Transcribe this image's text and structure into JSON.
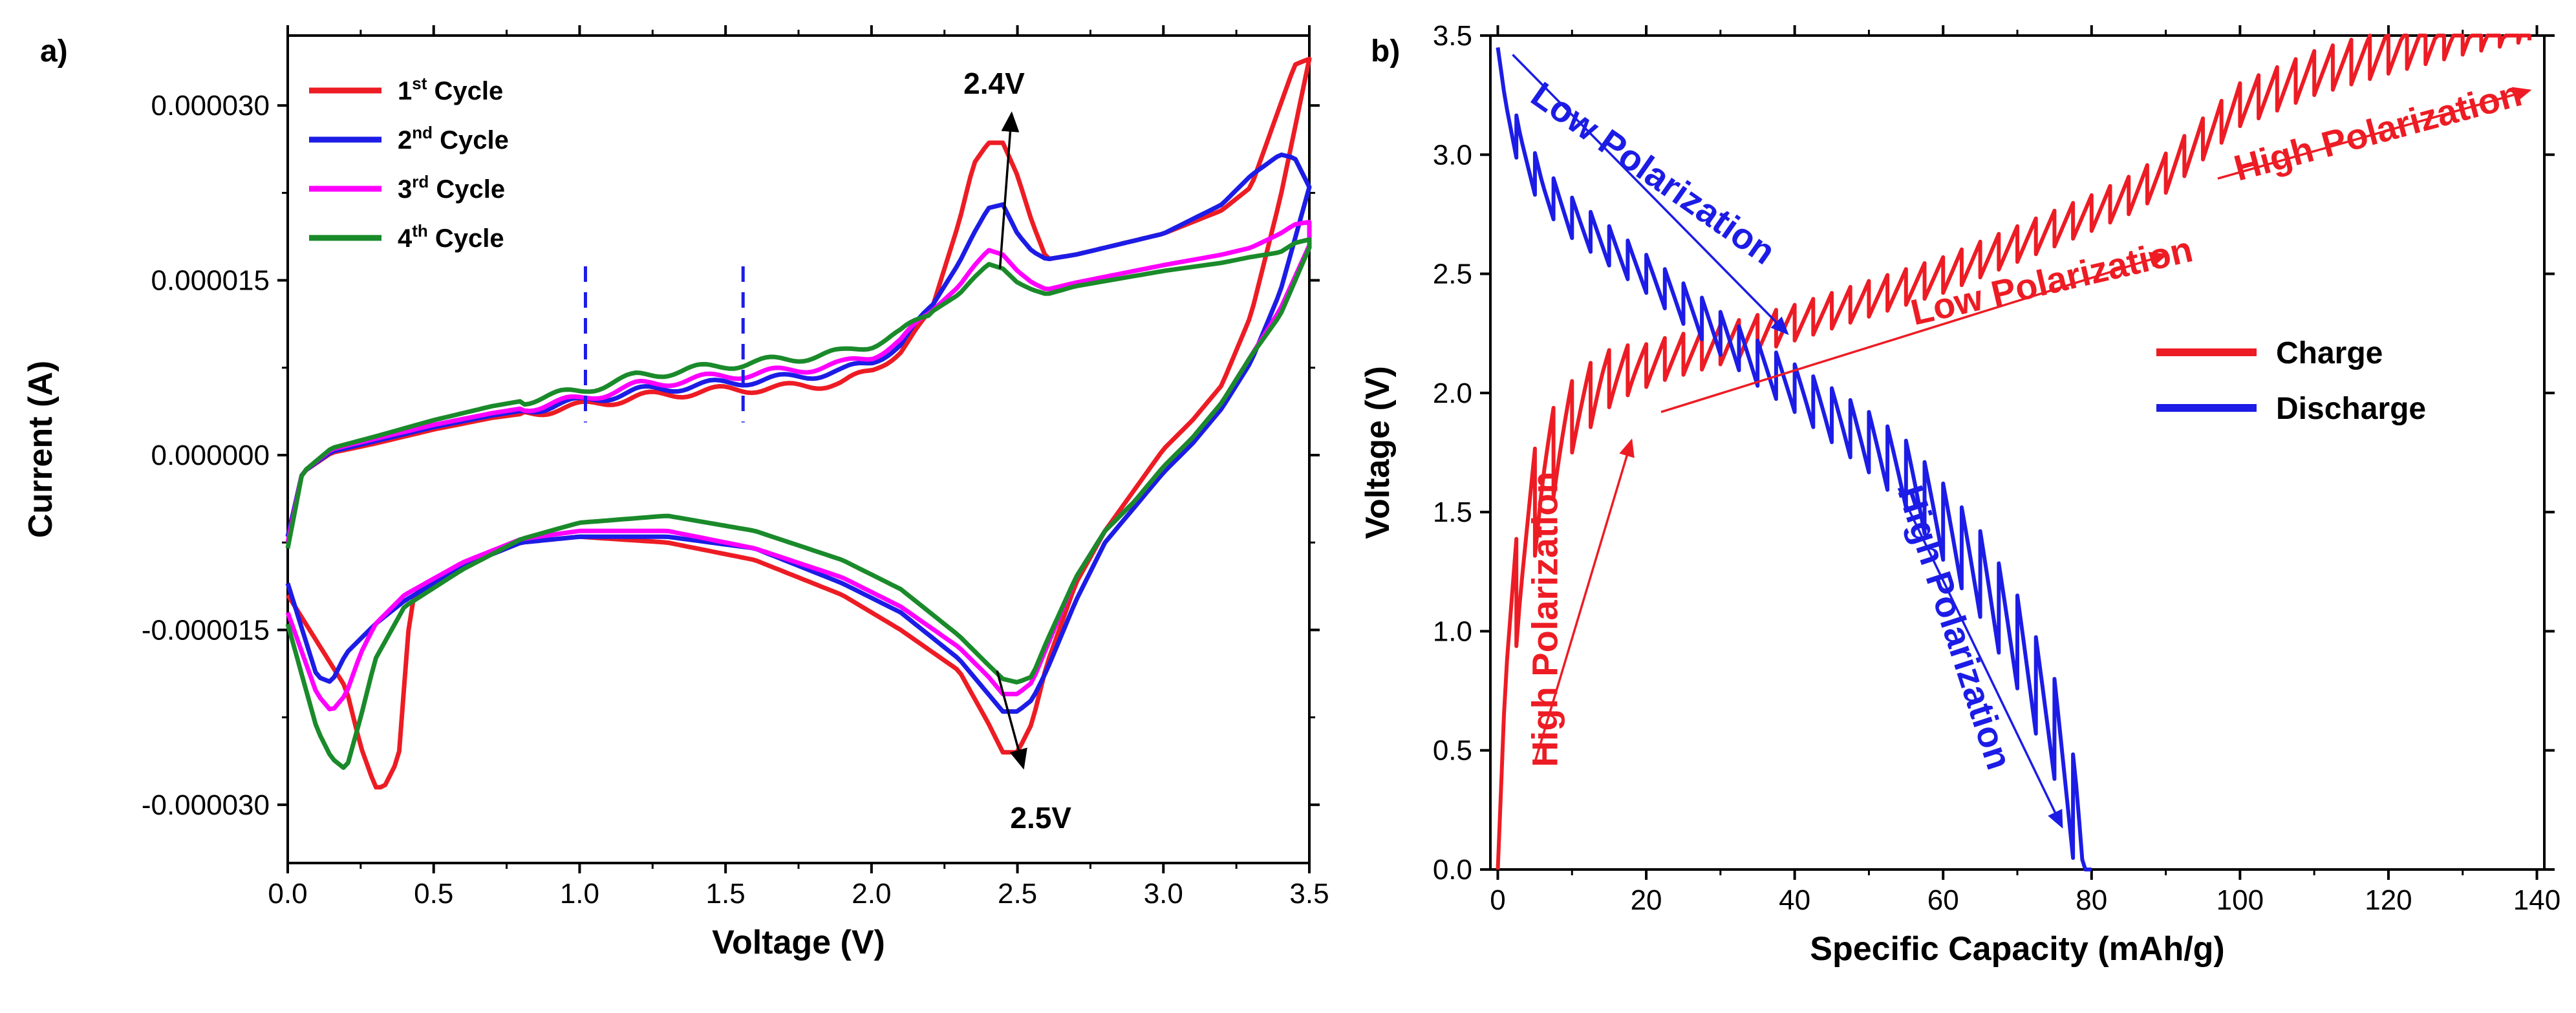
{
  "figure": {
    "panels": [
      "a)",
      "b)"
    ]
  },
  "chart_data": [
    {
      "type": "line",
      "panel": "a)",
      "title": "",
      "xlabel": "Voltage (V)",
      "ylabel": "Current (A)",
      "xlim": [
        0,
        3.5
      ],
      "ylim": [
        -3.5e-05,
        3.6e-05
      ],
      "xticks": [
        0.0,
        0.5,
        1.0,
        1.5,
        2.0,
        2.5,
        3.0,
        3.5
      ],
      "xtick_labels": [
        "0.0",
        "0.5",
        "1.0",
        "1.5",
        "2.0",
        "2.5",
        "3.0",
        "3.5"
      ],
      "yticks": [
        3e-05,
        1.5e-05,
        0,
        -1.5e-05,
        -3e-05
      ],
      "ytick_labels": [
        "0.000030",
        "0.000015",
        "0.000000",
        "-0.000015",
        "-0.000030"
      ],
      "legend_position": "top-left",
      "series": [
        {
          "name": "1st Cycle",
          "label_main": "1",
          "label_sup": "st",
          "label_rest": " Cycle",
          "color": "#ed1c24",
          "upper": {
            "x": [
              0.0,
              0.05,
              0.15,
              0.3,
              0.5,
              0.7,
              1.0,
              1.2,
              1.5,
              1.7,
              1.9,
              2.0,
              2.1,
              2.2,
              2.3,
              2.35,
              2.4,
              2.45,
              2.5,
              2.55,
              2.6,
              2.7,
              3.0,
              3.2,
              3.3,
              3.4,
              3.45,
              3.5
            ],
            "y": [
              -7e-06,
              -1.5e-06,
              2e-07,
              1e-06,
              2.2e-06,
              3.2e-06,
              4.2e-06,
              5e-06,
              5.6e-06,
              5.8e-06,
              6.2e-06,
              7.2e-06,
              9e-06,
              1.2e-05,
              2e-05,
              2.5e-05,
              2.68e-05,
              2.68e-05,
              2.4e-05,
              2e-05,
              1.68e-05,
              1.72e-05,
              1.9e-05,
              2.1e-05,
              2.3e-05,
              3e-05,
              3.35e-05,
              3.4e-05
            ]
          },
          "lower": {
            "x": [
              0.0,
              0.1,
              0.2,
              0.25,
              0.3,
              0.33,
              0.38,
              0.42,
              0.45,
              0.6,
              0.8,
              1.0,
              1.3,
              1.6,
              1.9,
              2.1,
              2.3,
              2.4,
              2.45,
              2.5,
              2.55,
              2.6,
              2.7,
              2.8,
              2.9,
              3.0,
              3.1,
              3.2,
              3.3,
              3.4,
              3.5
            ],
            "y": [
              -1.2e-05,
              -1.6e-05,
              -2e-05,
              -2.5e-05,
              -2.85e-05,
              -2.85e-05,
              -2.6e-05,
              -1.3e-05,
              -1.15e-05,
              -9.5e-06,
              -7.5e-06,
              -7e-06,
              -7.5e-06,
              -9e-06,
              -1.2e-05,
              -1.5e-05,
              -1.85e-05,
              -2.3e-05,
              -2.55e-05,
              -2.55e-05,
              -2.3e-05,
              -1.8e-05,
              -1.1e-05,
              -6.5e-06,
              -3e-06,
              5e-07,
              3e-06,
              6e-06,
              1.2e-05,
              2.2e-05,
              3.4e-05
            ]
          }
        },
        {
          "name": "2nd Cycle",
          "label_main": "2",
          "label_sup": "nd",
          "label_rest": " Cycle",
          "color": "#1c1ce6",
          "upper": {
            "x": [
              0.0,
              0.05,
              0.15,
              0.3,
              0.5,
              0.7,
              1.0,
              1.2,
              1.5,
              1.7,
              1.9,
              2.0,
              2.1,
              2.2,
              2.3,
              2.35,
              2.4,
              2.45,
              2.5,
              2.55,
              2.6,
              2.7,
              3.0,
              3.2,
              3.3,
              3.4,
              3.45,
              3.5
            ],
            "y": [
              -7e-06,
              -1.5e-06,
              3e-07,
              1.2e-06,
              2.4e-06,
              3.4e-06,
              4.6e-06,
              5.5e-06,
              6.2e-06,
              6.6e-06,
              7.2e-06,
              8e-06,
              9.5e-06,
              1.25e-05,
              1.65e-05,
              1.9e-05,
              2.12e-05,
              2.15e-05,
              1.9e-05,
              1.75e-05,
              1.68e-05,
              1.72e-05,
              1.9e-05,
              2.15e-05,
              2.4e-05,
              2.58e-05,
              2.55e-05,
              2.3e-05
            ]
          },
          "lower": {
            "x": [
              0.0,
              0.05,
              0.1,
              0.15,
              0.2,
              0.3,
              0.4,
              0.6,
              0.8,
              1.0,
              1.3,
              1.6,
              1.9,
              2.1,
              2.3,
              2.4,
              2.45,
              2.5,
              2.55,
              2.6,
              2.7,
              2.8,
              2.9,
              3.0,
              3.1,
              3.2,
              3.3,
              3.4,
              3.5
            ],
            "y": [
              -1.1e-05,
              -1.5e-05,
              -1.9e-05,
              -1.95e-05,
              -1.7e-05,
              -1.45e-05,
              -1.25e-05,
              -9.5e-06,
              -7.5e-06,
              -7e-06,
              -7e-06,
              -8e-06,
              -1.1e-05,
              -1.35e-05,
              -1.75e-05,
              -2.05e-05,
              -2.2e-05,
              -2.2e-05,
              -2.1e-05,
              -1.85e-05,
              -1.25e-05,
              -7.5e-06,
              -4.5e-06,
              -1.5e-06,
              1e-06,
              4e-06,
              8e-06,
              1.4e-05,
              2.3e-05
            ]
          }
        },
        {
          "name": "3rd Cycle",
          "label_main": "3",
          "label_sup": "rd",
          "label_rest": " Cycle",
          "color": "#ff00ff",
          "upper": {
            "x": [
              0.0,
              0.05,
              0.15,
              0.3,
              0.5,
              0.7,
              1.0,
              1.2,
              1.5,
              1.7,
              1.9,
              2.0,
              2.1,
              2.2,
              2.3,
              2.35,
              2.4,
              2.45,
              2.5,
              2.55,
              2.6,
              2.7,
              3.0,
              3.2,
              3.3,
              3.4,
              3.45,
              3.5
            ],
            "y": [
              -7.5e-06,
              -1.5e-06,
              5e-07,
              1.4e-06,
              2.6e-06,
              3.6e-06,
              4.8e-06,
              6e-06,
              6.8e-06,
              7.2e-06,
              7.8e-06,
              8.5e-06,
              9.8e-06,
              1.22e-05,
              1.45e-05,
              1.62e-05,
              1.76e-05,
              1.72e-05,
              1.58e-05,
              1.48e-05,
              1.42e-05,
              1.48e-05,
              1.63e-05,
              1.72e-05,
              1.78e-05,
              1.9e-05,
              1.98e-05,
              2e-05
            ]
          },
          "lower": {
            "x": [
              0.0,
              0.05,
              0.1,
              0.15,
              0.2,
              0.25,
              0.3,
              0.4,
              0.6,
              0.8,
              1.0,
              1.3,
              1.6,
              1.9,
              2.1,
              2.3,
              2.4,
              2.45,
              2.5,
              2.55,
              2.6,
              2.7,
              2.8,
              2.9,
              3.0,
              3.1,
              3.2,
              3.3,
              3.4,
              3.5
            ],
            "y": [
              -1.35e-05,
              -1.7e-05,
              -2.05e-05,
              -2.2e-05,
              -2.05e-05,
              -1.7e-05,
              -1.45e-05,
              -1.2e-05,
              -9.2e-06,
              -7.2e-06,
              -6.5e-06,
              -6.5e-06,
              -8e-06,
              -1.05e-05,
              -1.3e-05,
              -1.65e-05,
              -1.9e-05,
              -2.05e-05,
              -2.05e-05,
              -1.95e-05,
              -1.65e-05,
              -1.05e-05,
              -6.5e-06,
              -4e-06,
              -1e-06,
              1.5e-06,
              4.5e-06,
              8.5e-06,
              1.25e-05,
              1.8e-05
            ]
          }
        },
        {
          "name": "4th Cycle",
          "label_main": "4",
          "label_sup": "th",
          "label_rest": " Cycle",
          "color": "#1a8a2a",
          "upper": {
            "x": [
              0.0,
              0.05,
              0.15,
              0.3,
              0.5,
              0.7,
              1.0,
              1.2,
              1.5,
              1.7,
              1.9,
              2.0,
              2.1,
              2.2,
              2.3,
              2.35,
              2.4,
              2.45,
              2.5,
              2.55,
              2.6,
              2.7,
              3.0,
              3.2,
              3.3,
              3.4,
              3.45,
              3.5
            ],
            "y": [
              -8e-06,
              -1.5e-06,
              6e-07,
              1.6e-06,
              3e-06,
              4.2e-06,
              5.5e-06,
              6.8e-06,
              7.7e-06,
              8.2e-06,
              8.8e-06,
              9.5e-06,
              1.05e-05,
              1.22e-05,
              1.38e-05,
              1.52e-05,
              1.64e-05,
              1.6e-05,
              1.48e-05,
              1.42e-05,
              1.38e-05,
              1.45e-05,
              1.58e-05,
              1.65e-05,
              1.7e-05,
              1.74e-05,
              1.82e-05,
              1.85e-05
            ]
          },
          "lower": {
            "x": [
              0.0,
              0.05,
              0.1,
              0.15,
              0.2,
              0.25,
              0.3,
              0.4,
              0.6,
              0.8,
              1.0,
              1.3,
              1.6,
              1.9,
              2.1,
              2.3,
              2.4,
              2.45,
              2.5,
              2.55,
              2.6,
              2.7,
              2.8,
              2.9,
              3.0,
              3.1,
              3.2,
              3.3,
              3.4,
              3.5
            ],
            "y": [
              -1.45e-05,
              -1.9e-05,
              -2.35e-05,
              -2.6e-05,
              -2.7e-05,
              -2.25e-05,
              -1.75e-05,
              -1.3e-05,
              -9.8e-06,
              -7.2e-06,
              -5.8e-06,
              -5.2e-06,
              -6.5e-06,
              -9e-06,
              -1.15e-05,
              -1.55e-05,
              -1.8e-05,
              -1.92e-05,
              -1.95e-05,
              -1.9e-05,
              -1.6e-05,
              -1.05e-05,
              -6.5e-06,
              -4e-06,
              -1e-06,
              1.5e-06,
              4.5e-06,
              8.5e-06,
              1.2e-05,
              1.78e-05
            ]
          }
        }
      ],
      "markers": [
        {
          "type": "dashed-line",
          "x": 1.02,
          "y_range": [
            2.8e-06,
            1.62e-05
          ],
          "color": "#1c1ce6"
        },
        {
          "type": "dashed-line",
          "x": 1.56,
          "y_range": [
            2.8e-06,
            1.62e-05
          ],
          "color": "#1c1ce6"
        }
      ],
      "annotations": [
        {
          "text": "2.4V",
          "x": 2.42,
          "y": 3.1e-05,
          "arrow_from": [
            2.44,
            1.6e-05
          ],
          "arrow_to": [
            2.48,
            2.93e-05
          ]
        },
        {
          "text": "2.5V",
          "x": 2.58,
          "y": -3.2e-05,
          "arrow_from": [
            2.43,
            -1.85e-05
          ],
          "arrow_to": [
            2.52,
            -2.68e-05
          ]
        }
      ]
    },
    {
      "type": "line",
      "panel": "b)",
      "title": "",
      "xlabel": "Specific Capacity (mAh/g)",
      "ylabel": "Voltage (V)",
      "xlim": [
        -1,
        141
      ],
      "ylim": [
        0,
        3.5
      ],
      "xticks": [
        0,
        20,
        40,
        60,
        80,
        100,
        120,
        140
      ],
      "xtick_labels": [
        "0",
        "20",
        "40",
        "60",
        "80",
        "100",
        "120",
        "140"
      ],
      "yticks": [
        0.0,
        0.5,
        1.0,
        1.5,
        2.0,
        2.5,
        3.0,
        3.5
      ],
      "ytick_labels": [
        "0.0",
        "0.5",
        "1.0",
        "1.5",
        "2.0",
        "2.5",
        "3.0",
        "3.5"
      ],
      "legend_position": "right",
      "series": [
        {
          "name": "Charge",
          "color": "#ed1c24",
          "style": "sawtooth",
          "pulse_step": 2.5,
          "relax_fraction": 0.22,
          "base_curve": {
            "x": [
              0,
              1,
              3,
              6,
              10,
              14,
              18,
              22,
              30,
              40,
              50,
              60,
              70,
              80,
              85,
              90,
              95,
              100,
              110,
              120,
              130,
              139
            ],
            "y": [
              0.0,
              0.6,
              1.05,
              1.45,
              1.75,
              1.92,
              2.0,
              2.05,
              2.12,
              2.22,
              2.32,
              2.42,
              2.55,
              2.68,
              2.75,
              2.84,
              2.98,
              3.12,
              3.25,
              3.34,
              3.42,
              3.48
            ]
          },
          "relax_drop": {
            "x": [
              0,
              5,
              10,
              20,
              40,
              80,
              100,
              139
            ],
            "y": [
              0.45,
              0.45,
              0.3,
              0.18,
              0.15,
              0.15,
              0.18,
              0.2
            ]
          }
        },
        {
          "name": "Discharge",
          "color": "#1c1ce6",
          "style": "sawtooth",
          "pulse_step": 2.5,
          "relax_fraction": 0.22,
          "base_curve": {
            "x": [
              0,
              1,
              3,
              6,
              10,
              15,
              20,
              25,
              30,
              35,
              40,
              45,
              50,
              55,
              60,
              65,
              70,
              75,
              78,
              80
            ],
            "y": [
              3.45,
              3.3,
              3.12,
              2.95,
              2.82,
              2.7,
              2.58,
              2.46,
              2.34,
              2.22,
              2.12,
              2.02,
              1.92,
              1.8,
              1.62,
              1.42,
              1.15,
              0.8,
              0.42,
              0.0
            ]
          },
          "relax_drop": {
            "x": [
              0,
              20,
              40,
              55,
              65,
              80
            ],
            "y": [
              0.18,
              0.16,
              0.2,
              0.28,
              0.36,
              0.45
            ]
          }
        }
      ],
      "annotations": [
        {
          "text": "Low Polarization",
          "color": "#1c1ce6",
          "rotation": 35,
          "anchor": [
            20,
            2.88
          ],
          "arrow_from": [
            2,
            3.42
          ],
          "arrow_to": [
            39,
            2.25
          ]
        },
        {
          "text": "Low Polarization",
          "color": "#ed1c24",
          "rotation": -13,
          "anchor": [
            75,
            2.42
          ],
          "arrow_from": [
            22,
            1.92
          ],
          "arrow_to": [
            90,
            2.58
          ]
        },
        {
          "text": "High Polarization",
          "color": "#ed1c24",
          "rotation": -15,
          "anchor": [
            119,
            3.05
          ],
          "arrow_from": [
            97,
            2.9
          ],
          "arrow_to": [
            139,
            3.27
          ]
        },
        {
          "text": "High Polarization",
          "color": "#ed1c24",
          "rotation": -90,
          "anchor": [
            8,
            1.05
          ],
          "arrow_from": [
            5,
            0.45
          ],
          "arrow_to": [
            18,
            1.8
          ]
        },
        {
          "text": "High Polarization",
          "color": "#1c1ce6",
          "rotation": 72,
          "anchor": [
            60,
            1.0
          ],
          "arrow_from": [
            54,
            1.6
          ],
          "arrow_to": [
            76,
            0.18
          ]
        }
      ]
    }
  ]
}
